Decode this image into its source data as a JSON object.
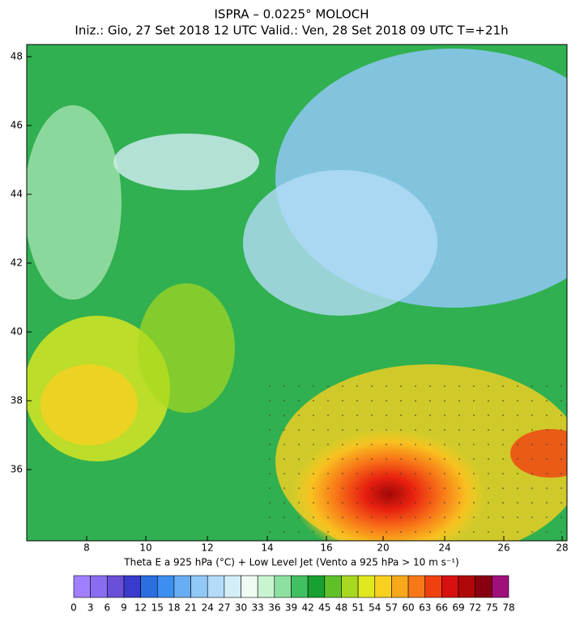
{
  "header": {
    "title": "ISPRA – 0.0225° MOLOCH",
    "subtitle": "Iniz.: Gio, 27 Set 2018  12 UTC  Valid.: Ven, 28 Set 2018  09 UTC  T=+21h"
  },
  "map": {
    "lat_labels": [
      "48",
      "46",
      "44",
      "42",
      "40",
      "38",
      "36"
    ],
    "lon_labels": [
      "8",
      "10",
      "12",
      "14",
      "16",
      "20",
      "24",
      "26",
      "28"
    ]
  },
  "legend": {
    "caption": "Theta E a 925 hPa (°C) + Low Level Jet (Vento a 925 hPa > 10 m s⁻¹)",
    "levels": [
      0,
      3,
      6,
      9,
      12,
      15,
      18,
      21,
      24,
      27,
      30,
      33,
      36,
      39,
      42,
      45,
      48,
      51,
      54,
      57,
      60,
      63,
      66,
      69,
      72,
      75,
      78
    ],
    "colors": [
      "#a080ff",
      "#8a6cf0",
      "#6a4fd8",
      "#3a3acc",
      "#2a6ee0",
      "#3c8ef0",
      "#68aef4",
      "#90c8f6",
      "#b4dcf8",
      "#d4eef8",
      "#eefcf4",
      "#c8f4d0",
      "#8ee0a0",
      "#40c060",
      "#18a030",
      "#60c028",
      "#a8d820",
      "#e0e820",
      "#f8d020",
      "#f8a818",
      "#f87818",
      "#f04010",
      "#d81010",
      "#b00808",
      "#880010",
      "#a0107a",
      "#f010f0"
    ]
  }
}
